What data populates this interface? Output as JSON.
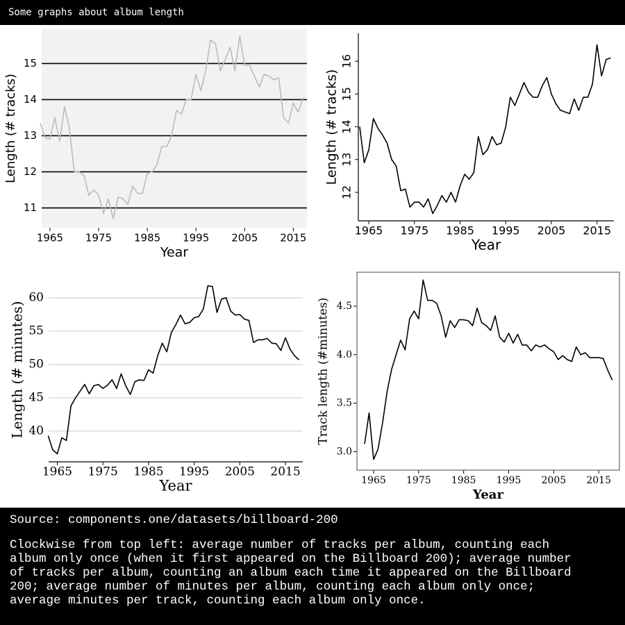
{
  "header": {
    "title": "Some graphs about album length"
  },
  "footer": {
    "source": "Source: components.one/datasets/billboard-200",
    "caption": "Clockwise from top left: average number of tracks per album, counting each album only once (when it first appeared on the Billboard 200); average number of tracks per album, counting an album each time it appeared on the Billboard 200; average number of minutes per album, counting each album only once; average minutes per track, counting each album only once."
  },
  "chart_data": [
    {
      "type": "line",
      "xlabel": "Year",
      "ylabel": "Length (# tracks)",
      "color": "#bbbbbb",
      "grid": true,
      "grid_color": "#000000",
      "x": [
        1963,
        1964,
        1965,
        1966,
        1967,
        1968,
        1969,
        1970,
        1971,
        1972,
        1973,
        1974,
        1975,
        1976,
        1977,
        1978,
        1979,
        1980,
        1981,
        1982,
        1983,
        1984,
        1985,
        1986,
        1987,
        1988,
        1989,
        1990,
        1991,
        1992,
        1993,
        1994,
        1995,
        1996,
        1997,
        1998,
        1999,
        2000,
        2001,
        2002,
        2003,
        2004,
        2005,
        2006,
        2007,
        2008,
        2009,
        2010,
        2011,
        2012,
        2013,
        2014,
        2015,
        2016,
        2017
      ],
      "values": [
        13.35,
        12.95,
        12.9,
        13.5,
        12.85,
        13.8,
        13.2,
        12.0,
        12.0,
        11.9,
        11.35,
        11.5,
        11.35,
        10.85,
        11.25,
        10.7,
        11.3,
        11.25,
        11.1,
        11.6,
        11.4,
        11.4,
        11.95,
        12.0,
        12.2,
        12.7,
        12.7,
        13.0,
        13.7,
        13.6,
        14.0,
        14.0,
        14.7,
        14.25,
        14.8,
        15.65,
        15.55,
        14.8,
        15.1,
        15.45,
        14.8,
        15.75,
        14.95,
        14.95,
        14.65,
        14.35,
        14.7,
        14.65,
        14.55,
        14.6,
        13.5,
        13.35,
        13.9,
        13.65,
        14.05
      ],
      "xlim": [
        1963.3,
        2017.8
      ],
      "xticks": [
        1965,
        1975,
        1985,
        1995,
        2005,
        2015
      ],
      "ylim": [
        10.45,
        15.95
      ],
      "yticks": [
        11,
        12,
        13,
        14,
        15
      ]
    },
    {
      "type": "line",
      "xlabel": "Year",
      "ylabel": "Length (# tracks)",
      "color": "#000000",
      "grid": false,
      "x": [
        1963,
        1964,
        1965,
        1966,
        1967,
        1968,
        1969,
        1970,
        1971,
        1972,
        1973,
        1974,
        1975,
        1976,
        1977,
        1978,
        1979,
        1980,
        1981,
        1982,
        1983,
        1984,
        1985,
        1986,
        1987,
        1988,
        1989,
        1990,
        1991,
        1992,
        1993,
        1994,
        1995,
        1996,
        1997,
        1998,
        1999,
        2000,
        2001,
        2002,
        2003,
        2004,
        2005,
        2006,
        2007,
        2008,
        2009,
        2010,
        2011,
        2012,
        2013,
        2014,
        2015,
        2016,
        2017,
        2018
      ],
      "values": [
        14.0,
        12.9,
        13.3,
        14.25,
        13.95,
        13.75,
        13.5,
        13.0,
        12.8,
        12.05,
        12.1,
        11.55,
        11.7,
        11.7,
        11.55,
        11.8,
        11.35,
        11.6,
        11.9,
        11.7,
        12.0,
        11.7,
        12.2,
        12.55,
        12.4,
        12.6,
        13.7,
        13.15,
        13.3,
        13.7,
        13.45,
        13.5,
        14.0,
        14.9,
        14.65,
        15.0,
        15.35,
        15.05,
        14.9,
        14.9,
        15.25,
        15.5,
        15.0,
        14.7,
        14.5,
        14.45,
        14.4,
        14.85,
        14.5,
        14.9,
        14.9,
        15.3,
        16.5,
        15.55,
        16.05,
        16.1
      ],
      "xlim": [
        1962.7,
        2018.7
      ],
      "xticks": [
        1965,
        1975,
        1985,
        1995,
        2005,
        2015
      ],
      "ylim": [
        11.13,
        16.85
      ],
      "yticks": [
        12,
        13,
        14,
        15,
        16
      ]
    },
    {
      "type": "line",
      "xlabel": "Year",
      "ylabel": "Length (# minutes)",
      "color": "#000000",
      "grid": true,
      "grid_color": "#dddddd",
      "x": [
        1963,
        1964,
        1965,
        1966,
        1967,
        1968,
        1969,
        1970,
        1971,
        1972,
        1973,
        1974,
        1975,
        1976,
        1977,
        1978,
        1979,
        1980,
        1981,
        1982,
        1983,
        1984,
        1985,
        1986,
        1987,
        1988,
        1989,
        1990,
        1991,
        1992,
        1993,
        1994,
        1995,
        1996,
        1997,
        1998,
        1999,
        2000,
        2001,
        2002,
        2003,
        2004,
        2005,
        2006,
        2007,
        2008,
        2009,
        2010,
        2011,
        2012,
        2013,
        2014,
        2015,
        2016,
        2017,
        2018
      ],
      "values": [
        39.3,
        37.2,
        36.6,
        39.0,
        38.6,
        43.8,
        45.0,
        46.0,
        47.0,
        45.6,
        46.8,
        47.0,
        46.4,
        46.9,
        47.7,
        46.4,
        48.6,
        46.8,
        45.5,
        47.4,
        47.7,
        47.6,
        49.2,
        48.7,
        51.3,
        53.2,
        51.9,
        54.8,
        56.0,
        57.4,
        56.1,
        56.3,
        57.0,
        57.2,
        58.3,
        61.8,
        61.7,
        57.8,
        59.8,
        60.0,
        58.0,
        57.4,
        57.5,
        56.8,
        56.6,
        53.3,
        53.7,
        53.7,
        53.9,
        53.2,
        53.1,
        52.1,
        54.0,
        52.3,
        51.3,
        50.7
      ],
      "xlim": [
        1963.1,
        2018.8
      ],
      "xticks": [
        1965,
        1975,
        1985,
        1995,
        2005,
        2015
      ],
      "ylim": [
        35.4,
        63
      ],
      "yticks": [
        40,
        45,
        50,
        55,
        60
      ]
    },
    {
      "type": "line",
      "xlabel": "Year",
      "ylabel": "Track length (#minutes)",
      "color": "#000000",
      "grid": false,
      "x": [
        1963,
        1964,
        1965,
        1966,
        1967,
        1968,
        1969,
        1970,
        1971,
        1972,
        1973,
        1974,
        1975,
        1976,
        1977,
        1978,
        1979,
        1980,
        1981,
        1982,
        1983,
        1984,
        1985,
        1986,
        1987,
        1988,
        1989,
        1990,
        1991,
        1992,
        1993,
        1994,
        1995,
        1996,
        1997,
        1998,
        1999,
        2000,
        2001,
        2002,
        2003,
        2004,
        2005,
        2006,
        2007,
        2008,
        2009,
        2010,
        2011,
        2012,
        2013,
        2014,
        2015,
        2016,
        2017,
        2018
      ],
      "values": [
        3.08,
        3.4,
        2.92,
        3.03,
        3.3,
        3.62,
        3.85,
        4.0,
        4.15,
        4.05,
        4.37,
        4.45,
        4.37,
        4.77,
        4.56,
        4.56,
        4.53,
        4.4,
        4.18,
        4.35,
        4.28,
        4.36,
        4.36,
        4.35,
        4.3,
        4.48,
        4.33,
        4.3,
        4.25,
        4.4,
        4.18,
        4.13,
        4.22,
        4.12,
        4.21,
        4.1,
        4.1,
        4.04,
        4.1,
        4.08,
        4.1,
        4.06,
        4.03,
        3.95,
        3.99,
        3.95,
        3.93,
        4.08,
        4.0,
        4.02,
        3.97,
        3.97,
        3.97,
        3.96,
        3.84,
        3.74
      ],
      "xlim": [
        1961.3,
        2019.6
      ],
      "xticks": [
        1965,
        1975,
        1985,
        1995,
        2005,
        2015
      ],
      "ylim": [
        2.81,
        4.85
      ],
      "yticks": [
        {
          "value": 3,
          "label": "3.0"
        },
        3.5,
        {
          "value": 4,
          "label": "4.0"
        },
        4.5
      ]
    }
  ]
}
